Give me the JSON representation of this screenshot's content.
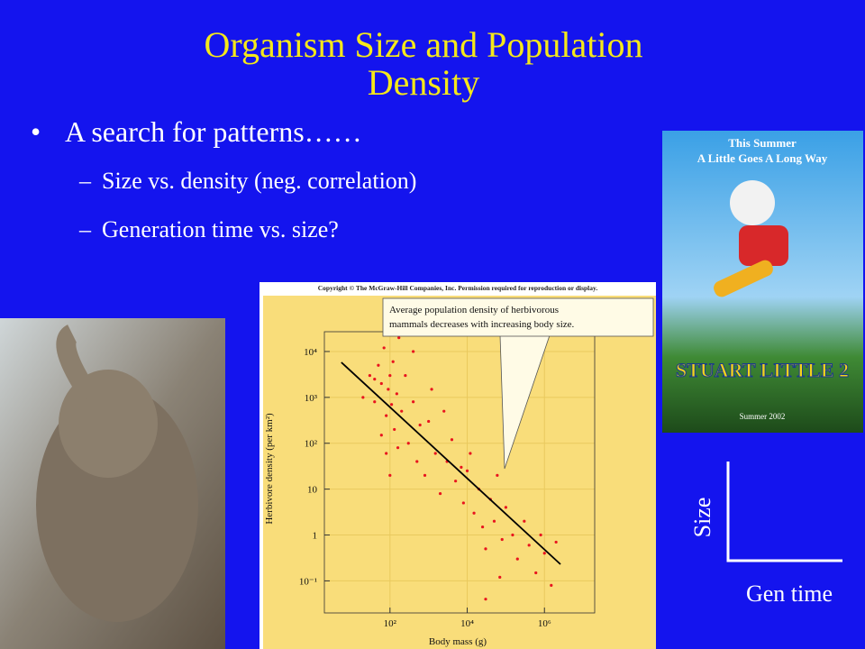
{
  "title_lines": [
    "Organism Size and Population",
    "Density"
  ],
  "bullets": [
    "A search for patterns……"
  ],
  "sub_bullets": [
    "Size vs. density (neg. correlation)",
    "Generation time vs. size?"
  ],
  "poster": {
    "tagline_lines": [
      "This Summer",
      "A Little Goes A Long Way"
    ],
    "movie_title": "STUART LITTLE 2",
    "release": "Summer 2002"
  },
  "sketch": {
    "y_label": "Size",
    "x_label": "Gen time"
  },
  "figure": {
    "type": "scatter",
    "copyright": "Copyright © The McGraw-Hill Companies, Inc. Permission required for reproduction or display.",
    "annotation_lines": [
      "Average population density of herbivorous",
      "mammals decreases with increasing body size."
    ],
    "x_label": "Body mass (g)",
    "y_label": "Herbivore density (per km²)",
    "log_x": true,
    "log_y": true,
    "grid": true,
    "color": "#e8141e",
    "xlim": [
      2,
      20000000
    ],
    "ylim": [
      0.02,
      27000
    ],
    "xticks": [
      {
        "value": 100,
        "label": "10²"
      },
      {
        "value": 10000,
        "label": "10⁴"
      },
      {
        "value": 1000000,
        "label": "10⁶"
      }
    ],
    "yticks": [
      {
        "value": 0.1,
        "label": "10⁻¹"
      },
      1,
      10,
      {
        "value": 100,
        "label": "10²"
      },
      {
        "value": 1000,
        "label": "10³"
      },
      {
        "value": 10000,
        "label": "10⁴"
      }
    ],
    "x": [
      20,
      30,
      40,
      50,
      60,
      70,
      80,
      90,
      100,
      110,
      120,
      130,
      150,
      170,
      200,
      60,
      80,
      40,
      100,
      250,
      300,
      400,
      500,
      600,
      800,
      1000,
      1500,
      2000,
      3000,
      4000,
      5000,
      7000,
      8000,
      10000,
      12000,
      15000,
      20000,
      25000,
      30000,
      40000,
      50000,
      60000,
      80000,
      100000,
      150000,
      200000,
      300000,
      400000,
      600000,
      800000,
      1000000,
      1500000,
      2000000,
      30000,
      70000,
      2500,
      1200,
      400,
      160
    ],
    "y": [
      1000,
      3000,
      800,
      5000,
      2000,
      12000,
      400,
      1500,
      3000,
      700,
      6000,
      200,
      1200,
      20000,
      500,
      150,
      60,
      2500,
      20,
      3000,
      100,
      800,
      40,
      250,
      20,
      300,
      60,
      8,
      40,
      120,
      15,
      30,
      5,
      25,
      60,
      3,
      10,
      1.5,
      0.5,
      6,
      2,
      20,
      0.8,
      4,
      1,
      0.3,
      2,
      0.6,
      0.15,
      1,
      0.4,
      0.08,
      0.7,
      0.04,
      0.12,
      500,
      1500,
      10000,
      80
    ],
    "fit_line": {
      "color": "#000000",
      "x": [
        5.5,
        2600000
      ],
      "y": [
        5800,
        0.23
      ]
    }
  }
}
